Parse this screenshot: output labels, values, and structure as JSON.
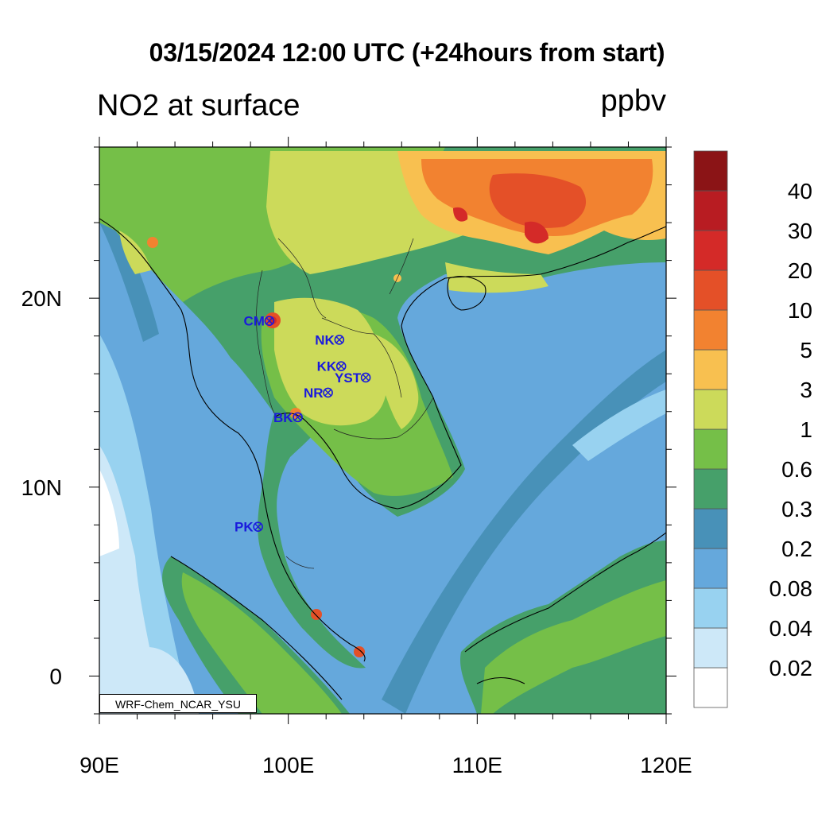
{
  "header": {
    "main_title": "03/15/2024 12:00 UTC (+24hours from start)",
    "left_title": "NO2 at surface",
    "units": "ppbv"
  },
  "credit": "WRF-Chem_NCAR_YSU",
  "map": {
    "lon_range": [
      90,
      120
    ],
    "lat_range": [
      -2,
      28
    ],
    "lon_ticks": [
      {
        "value": 90,
        "label": "90E"
      },
      {
        "value": 100,
        "label": "100E"
      },
      {
        "value": 110,
        "label": "110E"
      },
      {
        "value": 120,
        "label": "120E"
      }
    ],
    "lat_ticks": [
      {
        "value": 0,
        "label": "0"
      },
      {
        "value": 10,
        "label": "10N"
      },
      {
        "value": 20,
        "label": "20N"
      }
    ]
  },
  "stations": [
    {
      "code": "CM",
      "lon": 99.0,
      "lat": 18.8
    },
    {
      "code": "NK",
      "lon": 102.7,
      "lat": 17.8
    },
    {
      "code": "KK",
      "lon": 102.8,
      "lat": 16.4
    },
    {
      "code": "YST",
      "lon": 104.1,
      "lat": 15.8
    },
    {
      "code": "NR",
      "lon": 102.1,
      "lat": 15.0
    },
    {
      "code": "BK",
      "lon": 100.5,
      "lat": 13.7
    },
    {
      "code": "PK",
      "lon": 98.4,
      "lat": 7.9
    }
  ],
  "colorbar": {
    "levels": [
      "0.02",
      "0.04",
      "0.08",
      "0.2",
      "0.3",
      "0.6",
      "1",
      "3",
      "5",
      "10",
      "20",
      "30",
      "40"
    ],
    "colors": [
      "#ffffff",
      "#cde8f8",
      "#98d2f0",
      "#65a8dc",
      "#4891b8",
      "#46a06a",
      "#75bf48",
      "#ccda5a",
      "#f8c050",
      "#f28230",
      "#e45028",
      "#d42a28",
      "#b81c22",
      "#8b1416"
    ]
  }
}
